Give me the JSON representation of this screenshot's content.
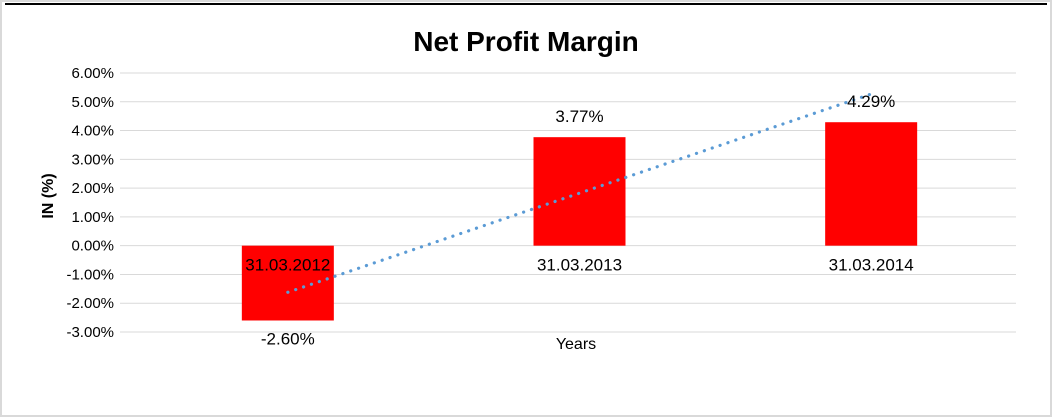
{
  "chart_data": {
    "type": "bar",
    "title": "Net Profit Margin",
    "xlabel": "Years",
    "ylabel": "IN (%)",
    "categories": [
      "31.03.2012",
      "31.03.2013",
      "31.03.2014"
    ],
    "series": [
      {
        "name": "Net Profit Margin",
        "values": [
          -2.6,
          3.77,
          4.29
        ]
      }
    ],
    "data_labels": [
      "-2.60%",
      "3.77%",
      "4.29%"
    ],
    "y_tick_labels": [
      "6.00%",
      "5.00%",
      "4.00%",
      "3.00%",
      "2.00%",
      "1.00%",
      "0.00%",
      "-1.00%",
      "-2.00%",
      "-3.00%"
    ],
    "y_tick_values": [
      6,
      5,
      4,
      3,
      2,
      1,
      0,
      -1,
      -2,
      -3
    ],
    "ylim": [
      -3,
      6
    ],
    "grid": true,
    "legend": "none",
    "colors": {
      "bar": "#ff0000",
      "trendline": "#5b9bd5",
      "gridline": "#d9d9d9",
      "text": "#000000",
      "frame_edge": "#d9d9d9",
      "top_rule": "#000000"
    },
    "trendline": {
      "type": "linear",
      "style": "dotted",
      "start_value": -1.62,
      "end_value": 5.27
    }
  }
}
